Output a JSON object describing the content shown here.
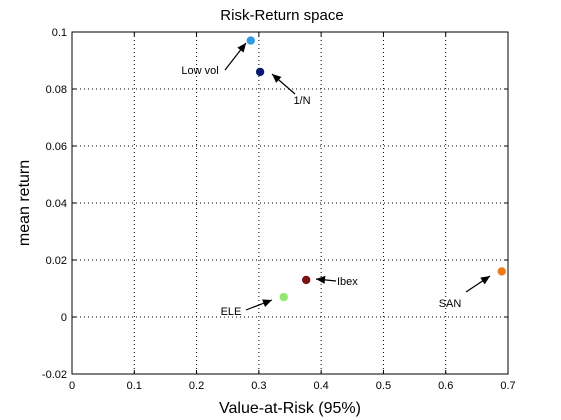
{
  "chart_data": {
    "type": "scatter",
    "title": "Risk-Return space",
    "xlabel": "Value-at-Risk (95%)",
    "ylabel": "mean return",
    "xlim": [
      0,
      0.7
    ],
    "ylim": [
      -0.02,
      0.1
    ],
    "x_ticks": [
      0,
      0.1,
      0.2,
      0.3,
      0.4,
      0.5,
      0.6,
      0.7
    ],
    "x_tick_labels": [
      "0",
      "0.1",
      "0.2",
      "0.3",
      "0.4",
      "0.5",
      "0.6",
      "0.7"
    ],
    "y_ticks": [
      -0.02,
      0,
      0.02,
      0.04,
      0.06,
      0.08,
      0.1
    ],
    "y_tick_labels": [
      "-0.02",
      "0",
      "0.02",
      "0.04",
      "0.06",
      "0.08",
      "0.1"
    ],
    "grid": true,
    "points": [
      {
        "label": "Low vol",
        "x": 0.287,
        "y": 0.097,
        "color": "#2f9be0"
      },
      {
        "label": "1/N",
        "x": 0.302,
        "y": 0.086,
        "color": "#0a1a6e"
      },
      {
        "label": "Ibex",
        "x": 0.376,
        "y": 0.013,
        "color": "#7a1010"
      },
      {
        "label": "ELE",
        "x": 0.34,
        "y": 0.007,
        "color": "#90e870"
      },
      {
        "label": "SAN",
        "x": 0.69,
        "y": 0.016,
        "color": "#f07a1a"
      }
    ]
  }
}
